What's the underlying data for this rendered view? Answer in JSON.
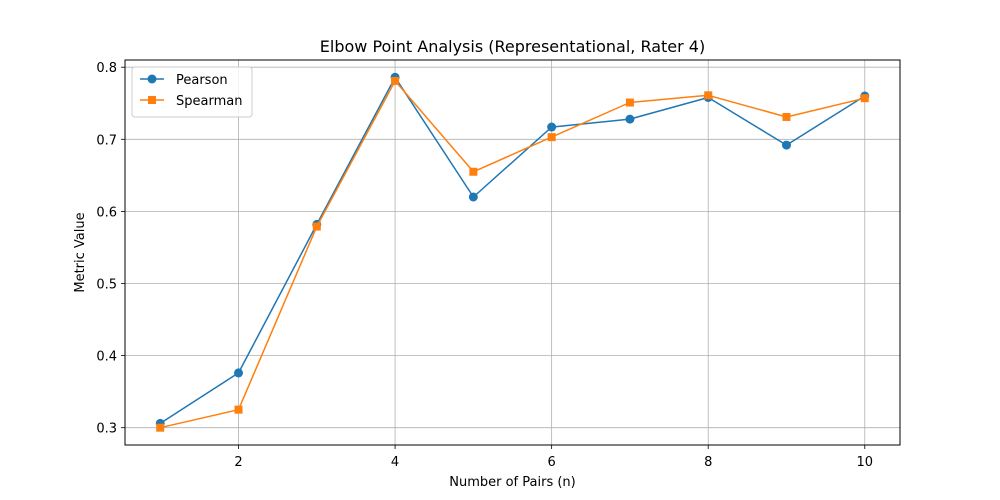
{
  "chart_data": {
    "type": "line",
    "title": "Elbow Point Analysis (Representational, Rater 4)",
    "xlabel": "Number of Pairs (n)",
    "ylabel": "Metric Value",
    "x": [
      1,
      2,
      3,
      4,
      5,
      6,
      7,
      8,
      9,
      10
    ],
    "xlim": [
      0.55,
      10.45
    ],
    "ylim": [
      0.276,
      0.81
    ],
    "xticks": [
      2,
      4,
      6,
      8,
      10
    ],
    "yticks": [
      0.3,
      0.4,
      0.5,
      0.6,
      0.7,
      0.8
    ],
    "xtick_labels": [
      "2",
      "4",
      "6",
      "8",
      "10"
    ],
    "ytick_labels": [
      "0.3",
      "0.4",
      "0.5",
      "0.6",
      "0.7",
      "0.8"
    ],
    "grid": true,
    "legend_position": "top-left",
    "series": [
      {
        "name": "Pearson",
        "color": "#1f77b4",
        "marker": "circle",
        "values": [
          0.306,
          0.376,
          0.582,
          0.786,
          0.62,
          0.717,
          0.728,
          0.758,
          0.692,
          0.76
        ]
      },
      {
        "name": "Spearman",
        "color": "#ff7f0e",
        "marker": "square",
        "values": [
          0.3,
          0.325,
          0.579,
          0.781,
          0.655,
          0.703,
          0.751,
          0.761,
          0.731,
          0.757
        ]
      }
    ]
  }
}
